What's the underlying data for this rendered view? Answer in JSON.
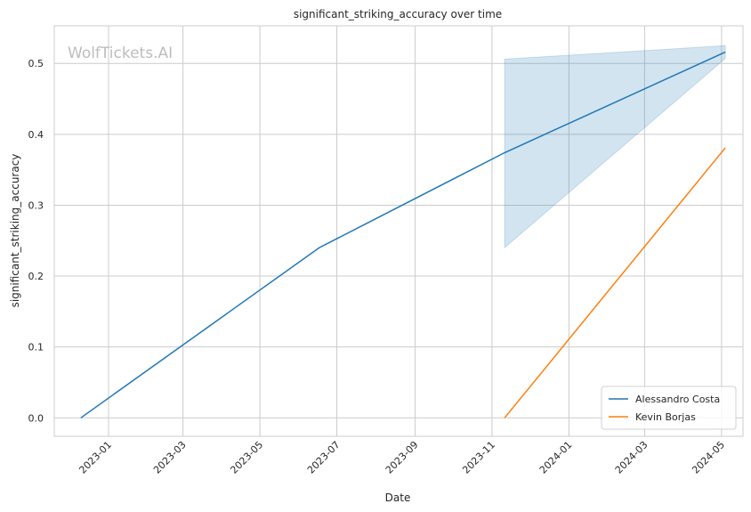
{
  "chart_data": {
    "type": "line",
    "title": "significant_striking_accuracy over time",
    "xlabel": "Date",
    "ylabel": "significant_striking_accuracy",
    "watermark": "WolfTickets.AI",
    "x_axis": {
      "type": "date",
      "ticks": [
        "2023-01",
        "2023-03",
        "2023-05",
        "2023-07",
        "2023-09",
        "2023-11",
        "2024-01",
        "2024-03",
        "2024-05"
      ],
      "range": [
        "2022-11-19",
        "2024-05-18"
      ]
    },
    "y_axis": {
      "range": [
        -0.026,
        0.553
      ],
      "ticks": [
        0.0,
        0.1,
        0.2,
        0.3,
        0.4,
        0.5
      ],
      "tick_labels": [
        "0.0",
        "0.1",
        "0.2",
        "0.3",
        "0.4",
        "0.5"
      ]
    },
    "grid": true,
    "legend_position": "bottom-right",
    "series": [
      {
        "name": "Alessandro Costa",
        "color": "#1f77b4",
        "points": [
          {
            "x": "2022-12-10",
            "y": 0.0
          },
          {
            "x": "2023-06-17",
            "y": 0.24
          },
          {
            "x": "2023-11-11",
            "y": 0.374
          },
          {
            "x": "2024-05-04",
            "y": 0.516
          }
        ],
        "band": [
          {
            "x": "2023-11-11",
            "low": 0.24,
            "high": 0.506
          },
          {
            "x": "2024-05-04",
            "low": 0.507,
            "high": 0.525
          }
        ]
      },
      {
        "name": "Kevin Borjas",
        "color": "#ff7f0e",
        "points": [
          {
            "x": "2023-11-11",
            "y": 0.0
          },
          {
            "x": "2024-05-04",
            "y": 0.381
          }
        ]
      }
    ]
  }
}
